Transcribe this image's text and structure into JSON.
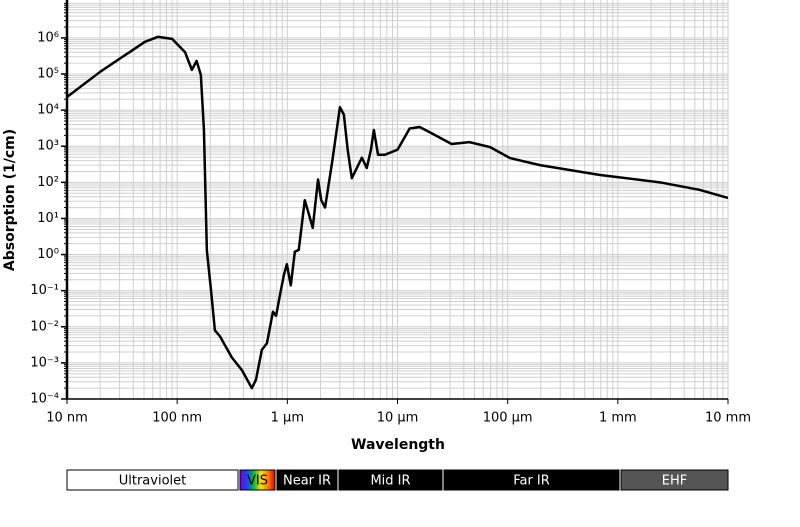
{
  "chart_data": {
    "type": "line",
    "xlabel": "Wavelength",
    "ylabel": "Absorption (1/cm)",
    "x": [
      10,
      20,
      51,
      67,
      90,
      118,
      136,
      150,
      164,
      175,
      186,
      203,
      220,
      244,
      314,
      387,
      476,
      519,
      587,
      653,
      740,
      790,
      860,
      930,
      990,
      1075,
      1170,
      1270,
      1440,
      1570,
      1700,
      1900,
      2030,
      2200,
      2570,
      3000,
      3260,
      3530,
      3850,
      4190,
      4750,
      5260,
      5740,
      6100,
      6660,
      7680,
      10000,
      12900,
      15900,
      20300,
      31000,
      45000,
      69000,
      105000,
      196000,
      690000,
      2400000,
      5500000,
      10000000
    ],
    "values": [
      23000,
      115000,
      780000,
      1070000,
      940000,
      400000,
      130000,
      230000,
      95000,
      2800,
      1.3,
      0.1,
      0.008,
      0.0055,
      0.0014,
      0.00063,
      0.0002,
      0.00034,
      0.0023,
      0.0035,
      0.026,
      0.02,
      0.08,
      0.27,
      0.54,
      0.14,
      1.2,
      1.35,
      32,
      13,
      5.5,
      120,
      32,
      20,
      420,
      12000,
      7500,
      800,
      130,
      220,
      480,
      250,
      800,
      2800,
      580,
      580,
      800,
      3100,
      3400,
      2300,
      1150,
      1300,
      950,
      470,
      300,
      160,
      100,
      62,
      37
    ],
    "color": "#000000",
    "xscale": "log",
    "yscale": "log",
    "grid": true,
    "minor_grid": true,
    "xlim": [
      10,
      10000000
    ],
    "ylim": [
      0.0001,
      11200000
    ],
    "xticks": [
      {
        "value": 10,
        "label": "10 nm"
      },
      {
        "value": 100,
        "label": "100 nm"
      },
      {
        "value": 1000,
        "label": "1 μm"
      },
      {
        "value": 10000,
        "label": "10 μm"
      },
      {
        "value": 100000,
        "label": "100 μm"
      },
      {
        "value": 1000000,
        "label": "1 mm"
      },
      {
        "value": 10000000,
        "label": "10 mm"
      }
    ],
    "yticks": [
      {
        "value": 0.0001,
        "label": "10⁻⁴"
      },
      {
        "value": 0.001,
        "label": "10⁻³"
      },
      {
        "value": 0.01,
        "label": "10⁻²"
      },
      {
        "value": 0.1,
        "label": "10⁻¹"
      },
      {
        "value": 1,
        "label": "10⁰"
      },
      {
        "value": 10,
        "label": "10¹"
      },
      {
        "value": 100,
        "label": "10²"
      },
      {
        "value": 1000,
        "label": "10³"
      },
      {
        "value": 10000,
        "label": "10⁴"
      },
      {
        "value": 100000,
        "label": "10⁵"
      },
      {
        "value": 1000000,
        "label": "10⁶"
      }
    ],
    "bands": [
      {
        "name": "Ultraviolet",
        "color": "#ffffff",
        "text_color": "#000000"
      },
      {
        "name": "VIS",
        "colors": [
          "#7a00c8",
          "#2040ff",
          "#00c040",
          "#ffe000",
          "#ff8000",
          "#e00000"
        ],
        "text_color": "#000000"
      },
      {
        "name": "Near IR",
        "color": "#000000",
        "text_color": "#ffffff"
      },
      {
        "name": "Mid IR",
        "color": "#000000",
        "text_color": "#ffffff"
      },
      {
        "name": "Far IR",
        "color": "#000000",
        "text_color": "#ffffff"
      },
      {
        "name": "EHF",
        "color": "#555555",
        "text_color": "#ffffff"
      }
    ]
  }
}
